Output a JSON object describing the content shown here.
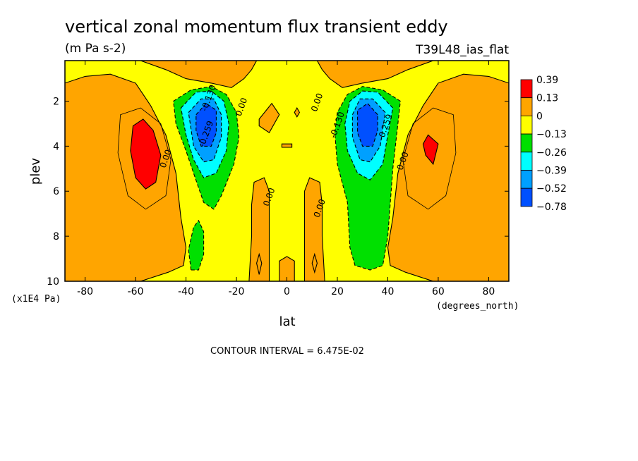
{
  "chart_data": {
    "type": "heatmap",
    "title": "vertical zonal momentum flux transient eddy",
    "units": "(m Pa s-2)",
    "dataset": "T39L48_ias_flat",
    "xlabel": "lat",
    "xunits": "(degrees_north)",
    "ylabel": "plev",
    "yunits": "(x1E4 Pa)",
    "x_ticks": [
      -80,
      -60,
      -40,
      -20,
      0,
      20,
      40,
      60,
      80
    ],
    "y_ticks": [
      2,
      4,
      6,
      8,
      10
    ],
    "xlim": [
      -88,
      88
    ],
    "ylim": [
      10,
      0.2
    ],
    "contour_interval_text": "CONTOUR INTERVAL = 6.475E-02",
    "colorbar": {
      "labels": [
        "0.39",
        "0.13",
        "0",
        "−0.13",
        "−0.26",
        "−0.39",
        "−0.52",
        "−0.78"
      ],
      "colors": [
        "#ff0000",
        "#ffa500",
        "#ffff00",
        "#00e000",
        "#00ffff",
        "#00a0ff",
        "#0050ff"
      ]
    },
    "contour_labels": [
      {
        "text": "-0.130",
        "lat": -30,
        "p": 1.9
      },
      {
        "text": "-0.259",
        "lat": -31,
        "p": 3.5
      },
      {
        "text": "0.00",
        "lat": -17,
        "p": 2.3
      },
      {
        "text": "0.00",
        "lat": -47,
        "p": 4.6
      },
      {
        "text": "0.00",
        "lat": -6,
        "p": 6.3
      },
      {
        "text": "0.00",
        "lat": 13,
        "p": 2.1
      },
      {
        "text": "0.00",
        "lat": 14,
        "p": 6.8
      },
      {
        "text": "-0.130",
        "lat": 21,
        "p": 3.1
      },
      {
        "text": "-0.259",
        "lat": 40,
        "p": 3.2
      },
      {
        "text": "0.00",
        "lat": 47,
        "p": 4.7
      }
    ],
    "regions": {
      "orange": [
        [
          [
            -88,
            1.2
          ],
          [
            -80,
            0.9
          ],
          [
            -70,
            0.8
          ],
          [
            -60,
            1.2
          ],
          [
            -54,
            2.2
          ],
          [
            -48,
            3.5
          ],
          [
            -44,
            5.2
          ],
          [
            -42,
            7.2
          ],
          [
            -40,
            8.5
          ],
          [
            -41,
            9.3
          ],
          [
            -47,
            9.6
          ],
          [
            -58,
            10
          ],
          [
            -88,
            10
          ]
        ],
        [
          [
            88,
            1.2
          ],
          [
            80,
            0.9
          ],
          [
            70,
            0.8
          ],
          [
            60,
            1.2
          ],
          [
            54,
            2.2
          ],
          [
            48,
            3.5
          ],
          [
            44,
            5.2
          ],
          [
            42,
            7.2
          ],
          [
            40,
            8.5
          ],
          [
            41,
            9.3
          ],
          [
            47,
            9.6
          ],
          [
            58,
            10
          ],
          [
            88,
            10
          ]
        ],
        [
          [
            -58,
            0.2
          ],
          [
            -48,
            0.6
          ],
          [
            -40,
            1.0
          ],
          [
            -30,
            1.2
          ],
          [
            -22,
            1.4
          ],
          [
            -17,
            1.0
          ],
          [
            -14,
            0.6
          ],
          [
            -12,
            0.2
          ]
        ],
        [
          [
            58,
            0.2
          ],
          [
            48,
            0.6
          ],
          [
            40,
            1.0
          ],
          [
            30,
            1.2
          ],
          [
            22,
            1.4
          ],
          [
            17,
            1.0
          ],
          [
            14,
            0.6
          ],
          [
            12,
            0.2
          ]
        ],
        [
          [
            -13,
            5.6
          ],
          [
            -9,
            5.4
          ],
          [
            -7,
            6.0
          ],
          [
            -7,
            10
          ],
          [
            -15,
            10
          ],
          [
            -14,
            8
          ],
          [
            -14,
            6.6
          ]
        ],
        [
          [
            13,
            5.6
          ],
          [
            9,
            5.4
          ],
          [
            7,
            6.0
          ],
          [
            7,
            10
          ],
          [
            15,
            10
          ],
          [
            14,
            8
          ],
          [
            14,
            6.6
          ]
        ],
        [
          [
            -3,
            10
          ],
          [
            -3,
            9.1
          ],
          [
            0,
            8.9
          ],
          [
            3,
            9.1
          ],
          [
            3,
            10
          ]
        ],
        [
          [
            -11,
            2.8
          ],
          [
            -6,
            2.1
          ],
          [
            -3,
            2.6
          ],
          [
            -7,
            3.4
          ],
          [
            -11,
            3.1
          ]
        ],
        [
          [
            -2,
            3.9
          ],
          [
            2,
            3.9
          ],
          [
            2,
            4.05
          ],
          [
            -2,
            4.05
          ]
        ],
        [
          [
            4,
            2.3
          ],
          [
            5,
            2.5
          ],
          [
            4,
            2.7
          ],
          [
            3,
            2.5
          ]
        ],
        [
          [
            -11,
            8.8
          ],
          [
            -10,
            9.2
          ],
          [
            -11,
            9.7
          ],
          [
            -12,
            9.2
          ]
        ],
        [
          [
            11,
            8.8
          ],
          [
            12,
            9.2
          ],
          [
            11,
            9.6
          ],
          [
            10,
            9.2
          ]
        ]
      ],
      "red": [
        [
          [
            -61,
            3.1
          ],
          [
            -57,
            2.8
          ],
          [
            -53,
            3.3
          ],
          [
            -50,
            4.4
          ],
          [
            -52,
            5.6
          ],
          [
            -56,
            5.9
          ],
          [
            -60,
            5.4
          ],
          [
            -62,
            4.2
          ]
        ],
        [
          [
            56,
            3.5
          ],
          [
            60,
            3.9
          ],
          [
            58,
            4.8
          ],
          [
            55,
            4.4
          ],
          [
            54,
            3.9
          ]
        ]
      ],
      "green": [
        [
          [
            -45,
            2.0
          ],
          [
            -38,
            1.5
          ],
          [
            -30,
            1.35
          ],
          [
            -24,
            1.7
          ],
          [
            -20,
            2.5
          ],
          [
            -19,
            3.6
          ],
          [
            -21,
            4.8
          ],
          [
            -26,
            6.2
          ],
          [
            -29,
            6.8
          ],
          [
            -33,
            6.5
          ],
          [
            -37,
            5.2
          ],
          [
            -40,
            4.2
          ],
          [
            -44,
            3.0
          ]
        ],
        [
          [
            45,
            2.0
          ],
          [
            38,
            1.5
          ],
          [
            30,
            1.35
          ],
          [
            24,
            1.7
          ],
          [
            20,
            2.5
          ],
          [
            19,
            3.4
          ],
          [
            20,
            4.8
          ],
          [
            24,
            6.5
          ],
          [
            25,
            8.5
          ],
          [
            27,
            9.3
          ],
          [
            33,
            9.5
          ],
          [
            38,
            9.3
          ],
          [
            40,
            8
          ],
          [
            42,
            5
          ],
          [
            44,
            3
          ]
        ],
        [
          [
            -38,
            9.5
          ],
          [
            -39,
            8.6
          ],
          [
            -37,
            7.6
          ],
          [
            -35,
            7.3
          ],
          [
            -33,
            7.8
          ],
          [
            -33,
            8.8
          ],
          [
            -35,
            9.5
          ]
        ]
      ],
      "cyan": [
        [
          [
            -42,
            2.3
          ],
          [
            -36,
            1.6
          ],
          [
            -30,
            1.55
          ],
          [
            -25,
            2.0
          ],
          [
            -23,
            3.0
          ],
          [
            -24,
            4.2
          ],
          [
            -28,
            5.2
          ],
          [
            -33,
            5.4
          ],
          [
            -37,
            4.6
          ],
          [
            -40,
            3.5
          ]
        ],
        [
          [
            42,
            2.3
          ],
          [
            36,
            1.6
          ],
          [
            30,
            1.55
          ],
          [
            25,
            2.0
          ],
          [
            23,
            3.0
          ],
          [
            24,
            4.2
          ],
          [
            28,
            5.2
          ],
          [
            33,
            5.5
          ],
          [
            38,
            4.8
          ],
          [
            40,
            3.5
          ]
        ]
      ],
      "blue1": [
        [
          [
            -39,
            2.5
          ],
          [
            -34,
            1.9
          ],
          [
            -29,
            1.9
          ],
          [
            -26,
            2.6
          ],
          [
            -26,
            3.6
          ],
          [
            -29,
            4.6
          ],
          [
            -33,
            4.7
          ],
          [
            -37,
            4.0
          ]
        ],
        [
          [
            39,
            2.5
          ],
          [
            34,
            1.9
          ],
          [
            29,
            1.9
          ],
          [
            26,
            2.6
          ],
          [
            26,
            3.6
          ],
          [
            29,
            4.6
          ],
          [
            33,
            4.7
          ],
          [
            37,
            4.0
          ]
        ]
      ],
      "blue2": [
        [
          [
            -36,
            2.6
          ],
          [
            -32,
            2.1
          ],
          [
            -28,
            2.4
          ],
          [
            -28,
            3.4
          ],
          [
            -30,
            4.0
          ],
          [
            -34,
            4.0
          ],
          [
            -36,
            3.3
          ]
        ],
        [
          [
            36,
            2.6
          ],
          [
            32,
            2.1
          ],
          [
            28,
            2.4
          ],
          [
            28,
            3.4
          ],
          [
            30,
            4.0
          ],
          [
            34,
            4.0
          ],
          [
            36,
            3.3
          ]
        ]
      ]
    }
  }
}
